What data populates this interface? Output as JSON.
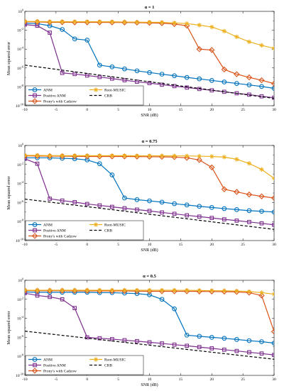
{
  "chart_data": [
    {
      "type": "line",
      "title": "α = 1",
      "xlabel": "SNR (dB)",
      "ylabel": "Mean squared error",
      "yscale": "log",
      "xlim": [
        -10,
        30
      ],
      "ylim": [
        1e-10,
        1
      ],
      "xticks": [
        "-10",
        "-5",
        "0",
        "5",
        "10",
        "15",
        "20",
        "25",
        "30"
      ],
      "yticks": [
        "10^0",
        "10^-2",
        "10^-4",
        "10^-6",
        "10^-8",
        "10^-10"
      ],
      "x": [
        -10,
        -8,
        -6,
        -4,
        -2,
        0,
        2,
        4,
        6,
        8,
        10,
        12,
        14,
        16,
        18,
        20,
        22,
        24,
        26,
        28,
        30
      ],
      "series": [
        {
          "name": "ANM",
          "color": "#0072BD",
          "marker": "circle",
          "values": [
            0.055,
            0.05,
            0.03,
            0.012,
            0.0012,
            0.0009,
            2e-06,
            1.3e-06,
            8e-07,
            5e-07,
            3.3e-07,
            2.2e-07,
            1.5e-07,
            1e-07,
            7e-08,
            4.8e-08,
            3.3e-08,
            2.3e-08,
            1.6e-08,
            1.1e-08,
            7e-09
          ]
        },
        {
          "name": "Positive ANM",
          "color": "#7E2F8E",
          "marker": "square",
          "values": [
            0.04,
            0.03,
            0.0055,
            3e-07,
            2.3e-07,
            1.6e-07,
            1.1e-07,
            7.5e-08,
            5e-08,
            3.5e-08,
            2.5e-08,
            1.7e-08,
            1.2e-08,
            8.5e-09,
            6e-09,
            4.3e-09,
            3e-09,
            2.1e-09,
            1.5e-09,
            1e-09,
            7e-10
          ]
        },
        {
          "name": "Prony's with Cadzow",
          "color": "#D95319",
          "marker": "diamond",
          "values": [
            0.08,
            0.075,
            0.07,
            0.07,
            0.068,
            0.068,
            0.068,
            0.067,
            0.066,
            0.064,
            0.06,
            0.055,
            0.045,
            0.03,
            0.0001,
            8e-05,
            7e-07,
            2.2e-07,
            1e-07,
            5e-08,
            2.2e-08
          ]
        },
        {
          "name": "Root-MUSIC",
          "color": "#EDB120",
          "marker": "star",
          "values": [
            0.085,
            0.085,
            0.08,
            0.08,
            0.08,
            0.08,
            0.08,
            0.078,
            0.075,
            0.072,
            0.07,
            0.068,
            0.06,
            0.05,
            0.035,
            0.022,
            0.008,
            0.002,
            0.0006,
            0.00025,
            0.00012
          ]
        },
        {
          "name": "CRB",
          "color": "#000000",
          "marker": "none",
          "dashed": true,
          "x": [
            -10,
            30
          ],
          "values": [
            2e-06,
            6e-10
          ]
        }
      ]
    },
    {
      "type": "line",
      "title": "α = 0.75",
      "xlabel": "SNR (dB)",
      "ylabel": "Mean squared error",
      "yscale": "log",
      "xlim": [
        -10,
        30
      ],
      "ylim": [
        1e-10,
        1
      ],
      "xticks": [
        "-10",
        "-5",
        "0",
        "5",
        "10",
        "15",
        "20",
        "25",
        "30"
      ],
      "yticks": [
        "10^0",
        "10^-2",
        "10^-4",
        "10^-6",
        "10^-8",
        "10^-10"
      ],
      "x": [
        -10,
        -8,
        -6,
        -4,
        -2,
        0,
        2,
        4,
        6,
        8,
        10,
        12,
        14,
        16,
        18,
        20,
        22,
        24,
        26,
        28,
        30
      ],
      "series": [
        {
          "name": "ANM",
          "color": "#0072BD",
          "marker": "circle",
          "values": [
            0.05,
            0.05,
            0.05,
            0.045,
            0.04,
            0.03,
            0.012,
            0.0008,
            3e-06,
            2e-06,
            1.5e-06,
            1.1e-06,
            7.5e-07,
            5.5e-07,
            4e-07,
            3e-07,
            2.3e-07,
            1.8e-07,
            1.4e-07,
            1.2e-07,
            1e-07
          ]
        },
        {
          "name": "Positive ANM",
          "color": "#7E2F8E",
          "marker": "square",
          "values": [
            0.04,
            0.012,
            2.5e-06,
            1.6e-06,
            1.1e-06,
            7e-07,
            5e-07,
            3.5e-07,
            2.5e-07,
            1.8e-07,
            1.3e-07,
            9e-08,
            6.5e-08,
            4.5e-08,
            3.3e-08,
            2.4e-08,
            1.7e-08,
            1.25e-08,
            9e-09,
            6.5e-09,
            4.5e-09
          ]
        },
        {
          "name": "Prony's with Cadzow",
          "color": "#D95319",
          "marker": "diamond",
          "values": [
            0.08,
            0.078,
            0.075,
            0.075,
            0.072,
            0.07,
            0.07,
            0.07,
            0.07,
            0.068,
            0.066,
            0.064,
            0.06,
            0.05,
            0.03,
            0.005,
            2.5e-05,
            1.3e-05,
            7e-06,
            4.5e-06,
            3e-06
          ]
        },
        {
          "name": "Root-MUSIC",
          "color": "#EDB120",
          "marker": "star",
          "values": [
            0.09,
            0.09,
            0.085,
            0.085,
            0.085,
            0.085,
            0.085,
            0.085,
            0.085,
            0.082,
            0.082,
            0.082,
            0.08,
            0.08,
            0.075,
            0.07,
            0.06,
            0.035,
            0.013,
            0.003,
            0.00035
          ]
        },
        {
          "name": "CRB",
          "color": "#000000",
          "marker": "none",
          "dashed": true,
          "x": [
            -10,
            30
          ],
          "values": [
            2.3e-06,
            1.5e-09
          ]
        }
      ]
    },
    {
      "type": "line",
      "title": "α = 0.5",
      "xlabel": "SNR (dB)",
      "ylabel": "Mean squared error",
      "yscale": "log",
      "xlim": [
        -10,
        30
      ],
      "ylim": [
        1e-10,
        1
      ],
      "xticks": [
        "-10",
        "-5",
        "0",
        "5",
        "10",
        "15",
        "20",
        "25",
        "30"
      ],
      "yticks": [
        "10^0",
        "10^-2",
        "10^-4",
        "10^-6",
        "10^-8",
        "10^-10"
      ],
      "x": [
        -10,
        -8,
        -6,
        -4,
        -2,
        0,
        2,
        4,
        6,
        8,
        10,
        12,
        14,
        16,
        18,
        20,
        22,
        24,
        26,
        28,
        30
      ],
      "series": [
        {
          "name": "ANM",
          "color": "#0072BD",
          "marker": "circle",
          "values": [
            0.06,
            0.055,
            0.055,
            0.055,
            0.055,
            0.055,
            0.05,
            0.05,
            0.045,
            0.04,
            0.03,
            0.01,
            0.001,
            1.7e-06,
            1.3e-06,
            1e-06,
            8e-07,
            6e-07,
            4.5e-07,
            3.5e-07,
            2.5e-07
          ]
        },
        {
          "name": "Positive ANM",
          "color": "#7E2F8E",
          "marker": "square",
          "values": [
            0.045,
            0.025,
            0.018,
            0.01,
            0.0012,
            1e-06,
            8e-07,
            6.5e-07,
            5e-07,
            4e-07,
            3e-07,
            2.3e-07,
            1.7e-07,
            1.3e-07,
            9.5e-08,
            7e-08,
            5e-08,
            3.7e-08,
            2.7e-08,
            2e-08,
            1.4e-08
          ]
        },
        {
          "name": "Prony's with Cadzow",
          "color": "#D95319",
          "marker": "diamond",
          "values": [
            0.085,
            0.08,
            0.08,
            0.08,
            0.078,
            0.078,
            0.075,
            0.075,
            0.075,
            0.072,
            0.07,
            0.07,
            0.07,
            0.07,
            0.068,
            0.066,
            0.064,
            0.06,
            0.05,
            0.025,
            4e-06
          ]
        },
        {
          "name": "Root-MUSIC",
          "color": "#EDB120",
          "marker": "star",
          "values": [
            0.09,
            0.09,
            0.09,
            0.09,
            0.09,
            0.09,
            0.09,
            0.09,
            0.09,
            0.09,
            0.09,
            0.09,
            0.09,
            0.088,
            0.085,
            0.082,
            0.08,
            0.075,
            0.065,
            0.05,
            0.035
          ]
        },
        {
          "name": "CRB",
          "color": "#000000",
          "marker": "none",
          "dashed": true,
          "x": [
            -10,
            30
          ],
          "values": [
            4.5e-06,
            5e-09
          ]
        }
      ]
    }
  ]
}
